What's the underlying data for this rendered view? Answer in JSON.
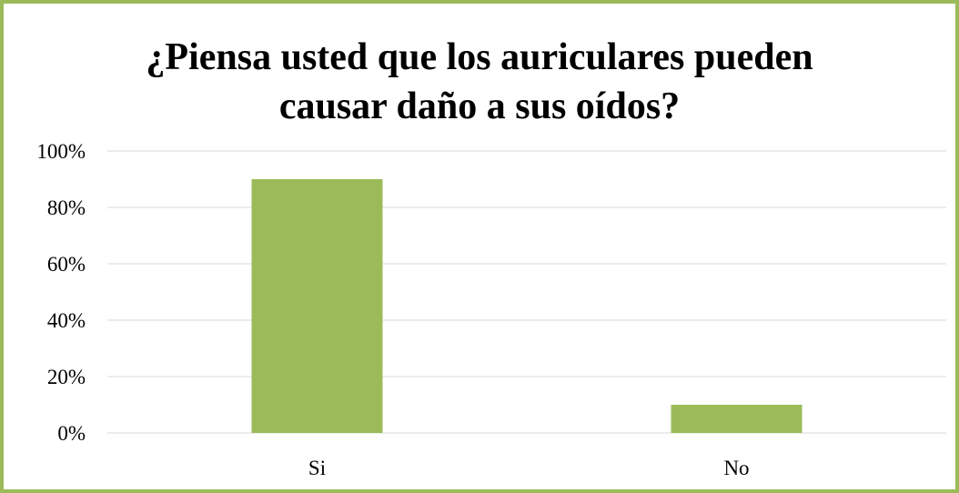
{
  "chart_data": {
    "type": "bar",
    "title_lines": [
      "¿Piensa usted que los auriculares pueden",
      "causar daño a sus oídos?"
    ],
    "categories": [
      "Si",
      "No"
    ],
    "values": [
      90,
      10
    ],
    "y_tick_labels": [
      "0%",
      "20%",
      "40%",
      "60%",
      "80%",
      "100%"
    ],
    "ylim": [
      0,
      100
    ],
    "grid": true,
    "bar_color": "#9BBB59",
    "frame_color": "#9BBB59",
    "gridline_color": "#D9D9D9"
  }
}
